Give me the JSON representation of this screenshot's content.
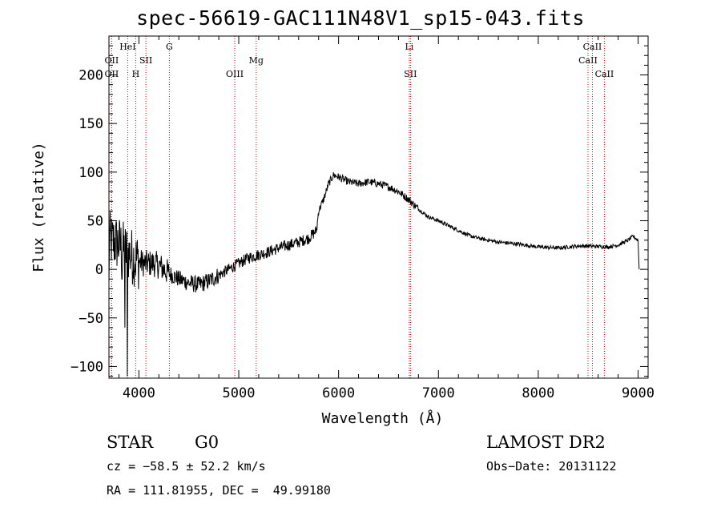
{
  "title": "spec-56619-GAC111N48V1_sp15-043.fits",
  "chart_data": {
    "type": "line",
    "xlabel": "Wavelength (Å)",
    "ylabel": "Flux (relative)",
    "xlim": [
      3700,
      9100
    ],
    "ylim": [
      -112,
      240
    ],
    "x_ticks": [
      4000,
      5000,
      6000,
      7000,
      8000,
      9000
    ],
    "y_ticks": [
      -100,
      -50,
      0,
      50,
      100,
      150,
      200
    ],
    "grid": false,
    "series": [
      {
        "points": [
          [
            3700,
            30
          ],
          [
            3800,
            26
          ],
          [
            3850,
            20
          ],
          [
            3900,
            16
          ],
          [
            3950,
            12
          ],
          [
            4000,
            8
          ],
          [
            4050,
            6
          ],
          [
            4100,
            6
          ],
          [
            4150,
            6
          ],
          [
            4200,
            4
          ],
          [
            4300,
            -4
          ],
          [
            4400,
            -10
          ],
          [
            4500,
            -14
          ],
          [
            4600,
            -16
          ],
          [
            4700,
            -12
          ],
          [
            4800,
            -6
          ],
          [
            4900,
            0
          ],
          [
            5000,
            6
          ],
          [
            5100,
            12
          ],
          [
            5200,
            15
          ],
          [
            5300,
            18
          ],
          [
            5400,
            22
          ],
          [
            5500,
            25
          ],
          [
            5600,
            28
          ],
          [
            5700,
            32
          ],
          [
            5780,
            40
          ],
          [
            5800,
            60
          ],
          [
            5850,
            72
          ],
          [
            5900,
            88
          ],
          [
            5950,
            97
          ],
          [
            6000,
            95
          ],
          [
            6100,
            90
          ],
          [
            6200,
            88
          ],
          [
            6300,
            90
          ],
          [
            6400,
            88
          ],
          [
            6500,
            85
          ],
          [
            6600,
            80
          ],
          [
            6700,
            72
          ],
          [
            6800,
            62
          ],
          [
            6900,
            54
          ],
          [
            7000,
            50
          ],
          [
            7100,
            45
          ],
          [
            7200,
            40
          ],
          [
            7300,
            35
          ],
          [
            7400,
            32
          ],
          [
            7500,
            30
          ],
          [
            7600,
            28
          ],
          [
            7800,
            26
          ],
          [
            8000,
            23
          ],
          [
            8200,
            22
          ],
          [
            8400,
            24
          ],
          [
            8500,
            24
          ],
          [
            8700,
            23
          ],
          [
            8800,
            25
          ],
          [
            8900,
            30
          ],
          [
            8950,
            34
          ],
          [
            9000,
            30
          ],
          [
            9010,
            0
          ]
        ],
        "noise_regions": [
          {
            "from": 3700,
            "to": 4000,
            "amplitude": 30
          },
          {
            "from": 4000,
            "to": 4300,
            "amplitude": 14
          },
          {
            "from": 4300,
            "to": 4800,
            "amplitude": 9
          },
          {
            "from": 4800,
            "to": 5800,
            "amplitude": 6
          },
          {
            "from": 5800,
            "to": 6800,
            "amplitude": 4
          },
          {
            "from": 6800,
            "to": 9010,
            "amplitude": 2
          }
        ],
        "spikes": [
          [
            3700,
            -15
          ],
          [
            3860,
            -60
          ],
          [
            3885,
            -110
          ],
          [
            3830,
            -10
          ]
        ]
      }
    ],
    "line_markers": [
      {
        "label": "OII",
        "wavelength": 3727,
        "row": 2
      },
      {
        "label": "OII",
        "wavelength": 3727,
        "row": 3
      },
      {
        "label": "HeI",
        "wavelength": 3888,
        "row": 1
      },
      {
        "label": "H",
        "wavelength": 3968,
        "row": 3
      },
      {
        "label": "SII",
        "wavelength": 4070,
        "row": 2
      },
      {
        "label": "G",
        "wavelength": 4305,
        "row": 1
      },
      {
        "label": "OIII",
        "wavelength": 4960,
        "row": 3
      },
      {
        "label": "Mg",
        "wavelength": 5175,
        "row": 2
      },
      {
        "label": "Li",
        "wavelength": 6708,
        "row": 1
      },
      {
        "label": "SII",
        "wavelength": 6720,
        "row": 3
      },
      {
        "label": "CaII",
        "wavelength": 8498,
        "row": 2
      },
      {
        "label": "CaII",
        "wavelength": 8542,
        "row": 1
      },
      {
        "label": "CaII",
        "wavelength": 8662,
        "row": 3
      }
    ],
    "colors": {
      "spectrum": "#000000",
      "marker": "#cc0000",
      "axes": "#000000"
    }
  },
  "info": {
    "class": "STAR",
    "subclass": "G0",
    "survey": "LAMOST DR2",
    "cz": "cz = −58.5 ± 52.2 km/s",
    "obs_date": "Obs−Date: 20131122",
    "radec": "RA = 111.81955, DEC =  49.99180"
  }
}
